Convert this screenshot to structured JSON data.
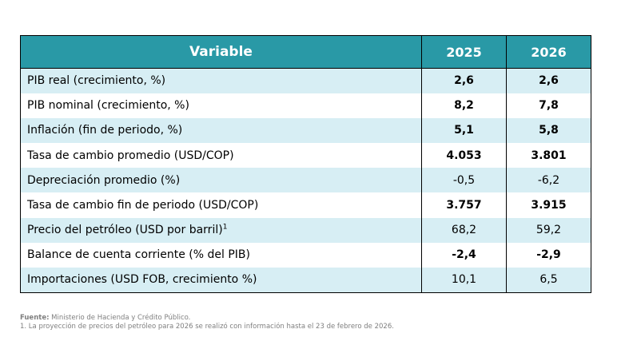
{
  "table": {
    "header": {
      "variable": "Variable",
      "year1": "2025",
      "year2": "2026"
    },
    "rows": [
      {
        "label": "PIB real (crecimiento, %)",
        "v2025": "2,6",
        "v2026": "2,6",
        "value_bold": true
      },
      {
        "label": "PIB nominal (crecimiento, %)",
        "v2025": "8,2",
        "v2026": "7,8",
        "value_bold": true
      },
      {
        "label": "Inflación (fin de periodo, %)",
        "v2025": "5,1",
        "v2026": "5,8",
        "value_bold": true
      },
      {
        "label": "Tasa de cambio promedio (USD/COP)",
        "v2025": "4.053",
        "v2026": "3.801",
        "value_bold": true
      },
      {
        "label": "Depreciación promedio (%)",
        "v2025": "-0,5",
        "v2026": "-6,2",
        "value_bold": false
      },
      {
        "label": "Tasa de cambio fin de periodo (USD/COP)",
        "v2025": "3.757",
        "v2026": "3.915",
        "value_bold": true
      },
      {
        "label": "Precio del petróleo (USD por barril)",
        "superscript": "1",
        "v2025": "68,2",
        "v2026": "59,2",
        "value_bold": false
      },
      {
        "label": "Balance de cuenta corriente (% del PIB)",
        "v2025": "-2,4",
        "v2026": "-2,9",
        "value_bold": true
      },
      {
        "label": "Importaciones (USD FOB, crecimiento %)",
        "v2025": "10,1",
        "v2026": "6,5",
        "value_bold": false
      }
    ]
  },
  "footer": {
    "source_label": "Fuente:",
    "source_text": " Ministerio de Hacienda y Crédito Público.",
    "footnote": "1. La proyección de precios del petróleo para 2026 se realizó con información hasta el 23 de febrero de 2026."
  },
  "colors": {
    "header_background": "#2999A6",
    "header_text": "#FFFFFF",
    "row_shade": "#D7EEF4",
    "row_plain": "#FFFFFF",
    "border": "#000000",
    "notes_text": "#7F7F7F"
  }
}
